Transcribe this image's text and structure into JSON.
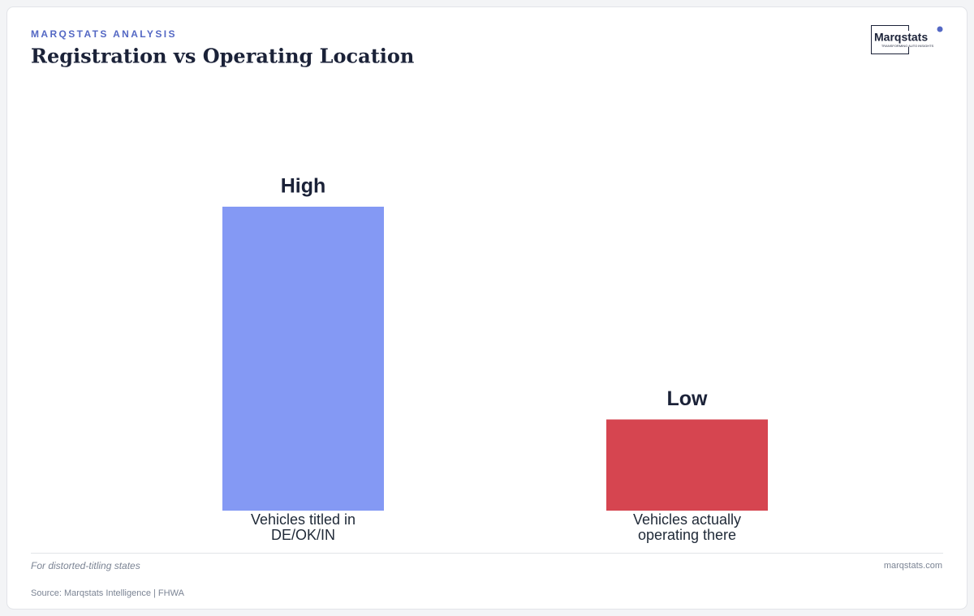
{
  "header": {
    "kicker": "MARQSTATS ANALYSIS",
    "logo": "Marqstats",
    "logo_tagline": "TRANSFORMING AUTO INSIGHTS"
  },
  "chart_data": {
    "type": "bar",
    "title": "Registration vs Operating Location",
    "categories": [
      "Vehicles titled in DE/OK/IN",
      "Vehicles actually operating there"
    ],
    "values": [
      100,
      30
    ],
    "value_labels": [
      "High",
      "Low"
    ],
    "colors": [
      "#8499f4",
      "#d64550"
    ]
  },
  "footer": {
    "note": "For distorted-titling states",
    "site": "marqstats.com",
    "source": "Source: Marqstats Intelligence | FHWA"
  }
}
